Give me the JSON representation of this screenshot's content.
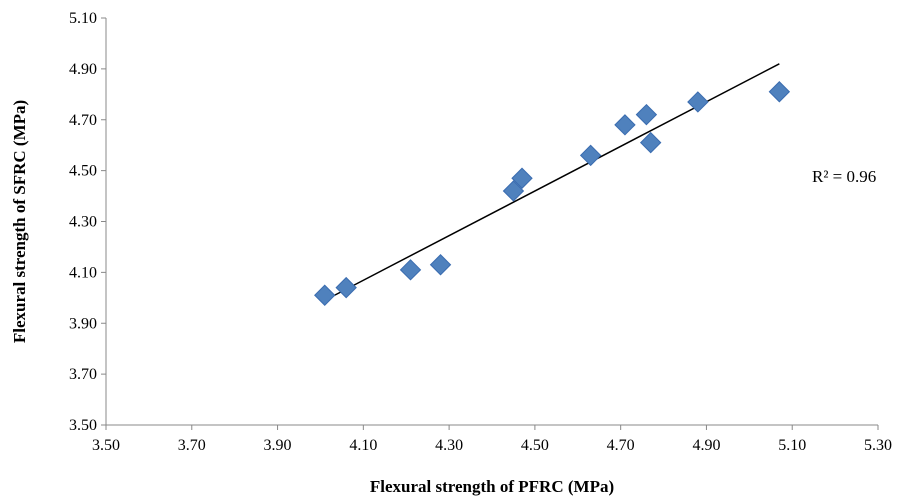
{
  "chart_data": {
    "type": "scatter",
    "title": "",
    "xlabel": "Flexural strength of PFRC (MPa)",
    "ylabel": "Flexural strength of SFRC (MPa)",
    "xlim": [
      3.5,
      5.3
    ],
    "ylim": [
      3.5,
      5.1
    ],
    "x_ticks": [
      "3.50",
      "3.70",
      "3.90",
      "4.10",
      "4.30",
      "4.50",
      "4.70",
      "4.90",
      "5.10",
      "5.30"
    ],
    "y_ticks": [
      "3.50",
      "3.70",
      "3.90",
      "4.10",
      "4.30",
      "4.50",
      "4.70",
      "4.90",
      "5.10"
    ],
    "grid": false,
    "legend": "none",
    "marker": "diamond",
    "marker_color": "#4F81BD",
    "series": [
      {
        "x": [
          4.01,
          4.06,
          4.21,
          4.28,
          4.45,
          4.47,
          4.63,
          4.71,
          4.76,
          4.77,
          4.88,
          5.07
        ],
        "y": [
          4.01,
          4.04,
          4.11,
          4.13,
          4.42,
          4.47,
          4.56,
          4.68,
          4.72,
          4.61,
          4.77,
          4.81
        ]
      }
    ],
    "trendline": {
      "x": [
        4.01,
        5.07
      ],
      "y": [
        3.99,
        4.92
      ]
    },
    "annotation": "R² = 0.96"
  }
}
